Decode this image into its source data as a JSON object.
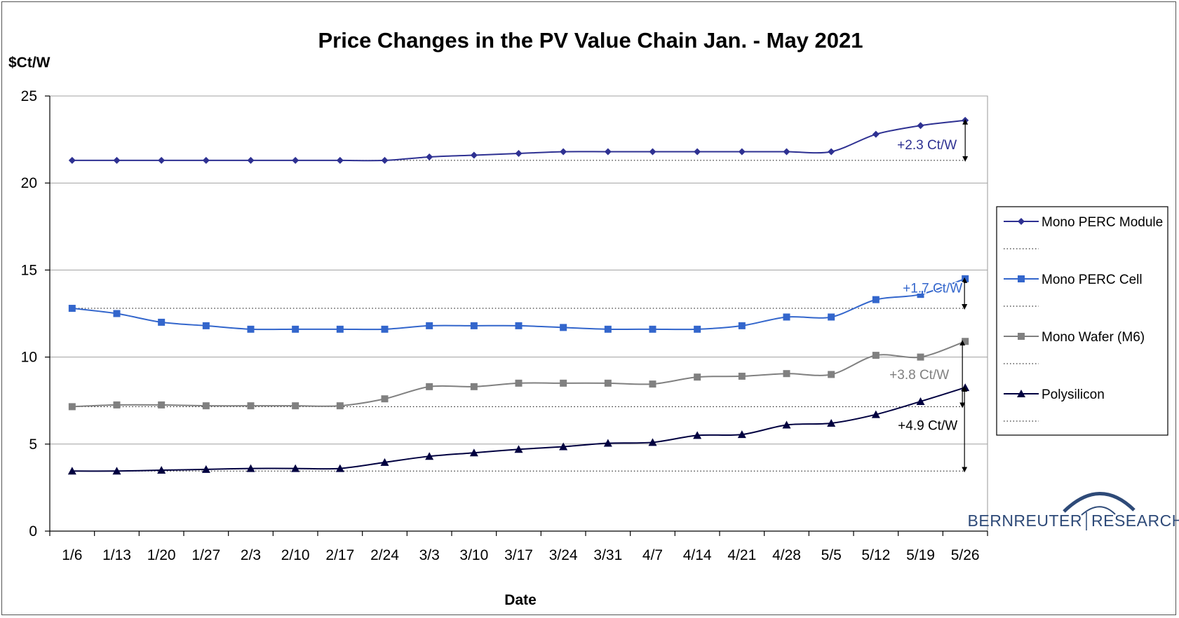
{
  "chart_data": {
    "type": "line",
    "title": "Price Changes in the PV Value Chain Jan. - May 2021",
    "ylabel": "$Ct/W",
    "xlabel": "Date",
    "ylim": [
      0,
      25
    ],
    "yticks": [
      0,
      5,
      10,
      15,
      20,
      25
    ],
    "grid": "horizontal",
    "legend_position": "right",
    "categories": [
      "1/6",
      "1/13",
      "1/20",
      "1/27",
      "2/3",
      "2/10",
      "2/17",
      "2/24",
      "3/3",
      "3/10",
      "3/17",
      "3/24",
      "3/31",
      "4/7",
      "4/14",
      "4/21",
      "4/28",
      "5/5",
      "5/12",
      "5/19",
      "5/26"
    ],
    "series": [
      {
        "name": "Mono PERC Module",
        "color": "#2e3192",
        "marker": "diamond",
        "values": [
          21.3,
          21.3,
          21.3,
          21.3,
          21.3,
          21.3,
          21.3,
          21.3,
          21.5,
          21.6,
          21.7,
          21.8,
          21.8,
          21.8,
          21.8,
          21.8,
          21.8,
          21.8,
          22.8,
          23.3,
          23.6
        ]
      },
      {
        "name": "Mono PERC Cell",
        "color": "#3366cc",
        "marker": "square",
        "values": [
          12.8,
          12.5,
          12.0,
          11.8,
          11.6,
          11.6,
          11.6,
          11.6,
          11.8,
          11.8,
          11.8,
          11.7,
          11.6,
          11.6,
          11.6,
          11.8,
          12.3,
          12.3,
          13.3,
          13.6,
          14.5
        ]
      },
      {
        "name": "Mono Wafer (M6)",
        "color": "#808080",
        "marker": "square",
        "values": [
          7.15,
          7.25,
          7.25,
          7.2,
          7.2,
          7.2,
          7.2,
          7.6,
          8.3,
          8.3,
          8.5,
          8.5,
          8.5,
          8.45,
          8.85,
          8.9,
          9.05,
          9.0,
          10.1,
          10.0,
          10.9
        ]
      },
      {
        "name": "Polysilicon",
        "color": "#000040",
        "marker": "triangle",
        "values": [
          3.45,
          3.45,
          3.5,
          3.55,
          3.6,
          3.6,
          3.6,
          3.95,
          4.3,
          4.5,
          4.7,
          4.85,
          5.05,
          5.1,
          5.5,
          5.55,
          6.1,
          6.2,
          6.7,
          7.45,
          8.25
        ]
      }
    ],
    "annotations": [
      {
        "text": "+2.3 Ct/W",
        "color": "#2e3192",
        "from": 21.3,
        "to": 23.6
      },
      {
        "text": "+1.7 Ct/W",
        "color": "#3366cc",
        "from": 12.8,
        "to": 14.5
      },
      {
        "text": "+3.8 Ct/W",
        "color": "#808080",
        "from": 7.15,
        "to": 10.9
      },
      {
        "text": "+4.9 Ct/W",
        "color": "#000000",
        "from": 3.45,
        "to": 8.25
      }
    ]
  },
  "logo": {
    "left": "BERNREUTER",
    "right": "RESEARCH",
    "color": "#2e4a78"
  }
}
